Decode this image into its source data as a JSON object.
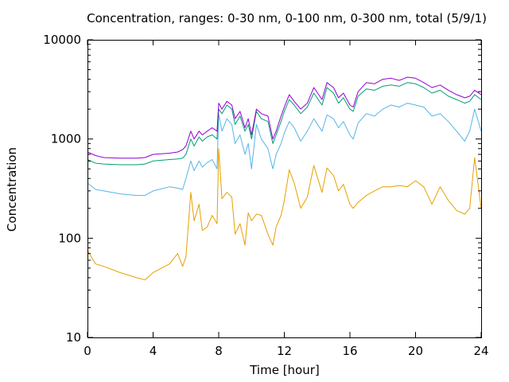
{
  "chart_data": {
    "type": "line",
    "title": "Concentration, ranges: 0-30 nm, 0-100 nm, 0-300 nm, total (5/9/1)",
    "xlabel": "Time [hour]",
    "ylabel": "Concentration",
    "xlim": [
      0,
      24
    ],
    "ylim": [
      10,
      10000
    ],
    "yscale": "log",
    "grid": false,
    "x_ticks": [
      0,
      4,
      8,
      12,
      16,
      20,
      24
    ],
    "x_tick_labels": [
      "0",
      "4",
      "8",
      "12",
      "16",
      "20",
      "24"
    ],
    "y_ticks": [
      10,
      100,
      1000,
      10000
    ],
    "y_tick_labels": [
      "10",
      "100",
      "1000",
      "10000"
    ],
    "x": [
      0,
      0.5,
      1,
      2,
      3,
      3.5,
      4,
      5,
      5.5,
      5.8,
      6,
      6.3,
      6.5,
      6.8,
      7,
      7.3,
      7.6,
      7.9,
      8,
      8.2,
      8.5,
      8.8,
      9,
      9.3,
      9.6,
      9.8,
      10,
      10.3,
      10.6,
      11,
      11.3,
      11.5,
      11.8,
      12,
      12.3,
      12.6,
      13,
      13.4,
      13.8,
      14.3,
      14.6,
      15,
      15.3,
      15.6,
      16,
      16.2,
      16.5,
      17,
      17.5,
      18,
      18.5,
      19,
      19.5,
      20,
      20.5,
      21,
      21.5,
      22,
      22.5,
      23,
      23.3,
      23.6,
      24
    ],
    "series": [
      {
        "color": "#e69f00",
        "values": [
          75,
          55,
          52,
          45,
          40,
          38,
          45,
          55,
          70,
          52,
          65,
          290,
          150,
          220,
          120,
          130,
          170,
          140,
          800,
          250,
          290,
          260,
          110,
          140,
          85,
          180,
          150,
          175,
          170,
          110,
          85,
          130,
          170,
          240,
          490,
          360,
          200,
          260,
          540,
          290,
          510,
          430,
          300,
          350,
          220,
          200,
          230,
          270,
          300,
          330,
          330,
          340,
          330,
          380,
          330,
          220,
          330,
          240,
          190,
          175,
          200,
          650,
          200
        ]
      },
      {
        "color": "#56b4e9",
        "values": [
          360,
          310,
          300,
          280,
          270,
          270,
          300,
          330,
          320,
          310,
          400,
          600,
          480,
          600,
          520,
          580,
          620,
          500,
          1800,
          1200,
          1600,
          1400,
          900,
          1100,
          700,
          900,
          500,
          1400,
          1000,
          800,
          500,
          700,
          900,
          1150,
          1500,
          1300,
          950,
          1200,
          1600,
          1200,
          1750,
          1600,
          1300,
          1500,
          1100,
          1000,
          1450,
          1800,
          1700,
          2000,
          2200,
          2100,
          2300,
          2200,
          2100,
          1700,
          1800,
          1500,
          1200,
          950,
          1200,
          2000,
          1200
        ]
      },
      {
        "color": "#009e73",
        "values": [
          620,
          570,
          560,
          550,
          550,
          560,
          600,
          620,
          630,
          640,
          700,
          1000,
          850,
          1050,
          950,
          1050,
          1100,
          1000,
          2000,
          1800,
          2200,
          2000,
          1400,
          1700,
          1200,
          1400,
          1000,
          1900,
          1600,
          1500,
          900,
          1100,
          1500,
          1900,
          2500,
          2200,
          1800,
          2100,
          2900,
          2200,
          3300,
          2900,
          2300,
          2600,
          2000,
          1900,
          2700,
          3200,
          3100,
          3400,
          3500,
          3400,
          3700,
          3600,
          3300,
          2900,
          3100,
          2700,
          2500,
          2300,
          2400,
          2800,
          2500
        ]
      },
      {
        "color": "#9400d3",
        "values": [
          740,
          680,
          650,
          640,
          640,
          650,
          700,
          720,
          740,
          780,
          850,
          1200,
          1000,
          1200,
          1100,
          1200,
          1300,
          1200,
          2300,
          2000,
          2400,
          2200,
          1600,
          1900,
          1300,
          1600,
          1100,
          2000,
          1800,
          1700,
          1000,
          1200,
          1700,
          2100,
          2800,
          2400,
          2000,
          2300,
          3300,
          2500,
          3700,
          3300,
          2600,
          2900,
          2200,
          2100,
          3000,
          3700,
          3600,
          4000,
          4100,
          3900,
          4200,
          4100,
          3700,
          3300,
          3500,
          3100,
          2800,
          2600,
          2700,
          3100,
          2800
        ]
      }
    ]
  }
}
